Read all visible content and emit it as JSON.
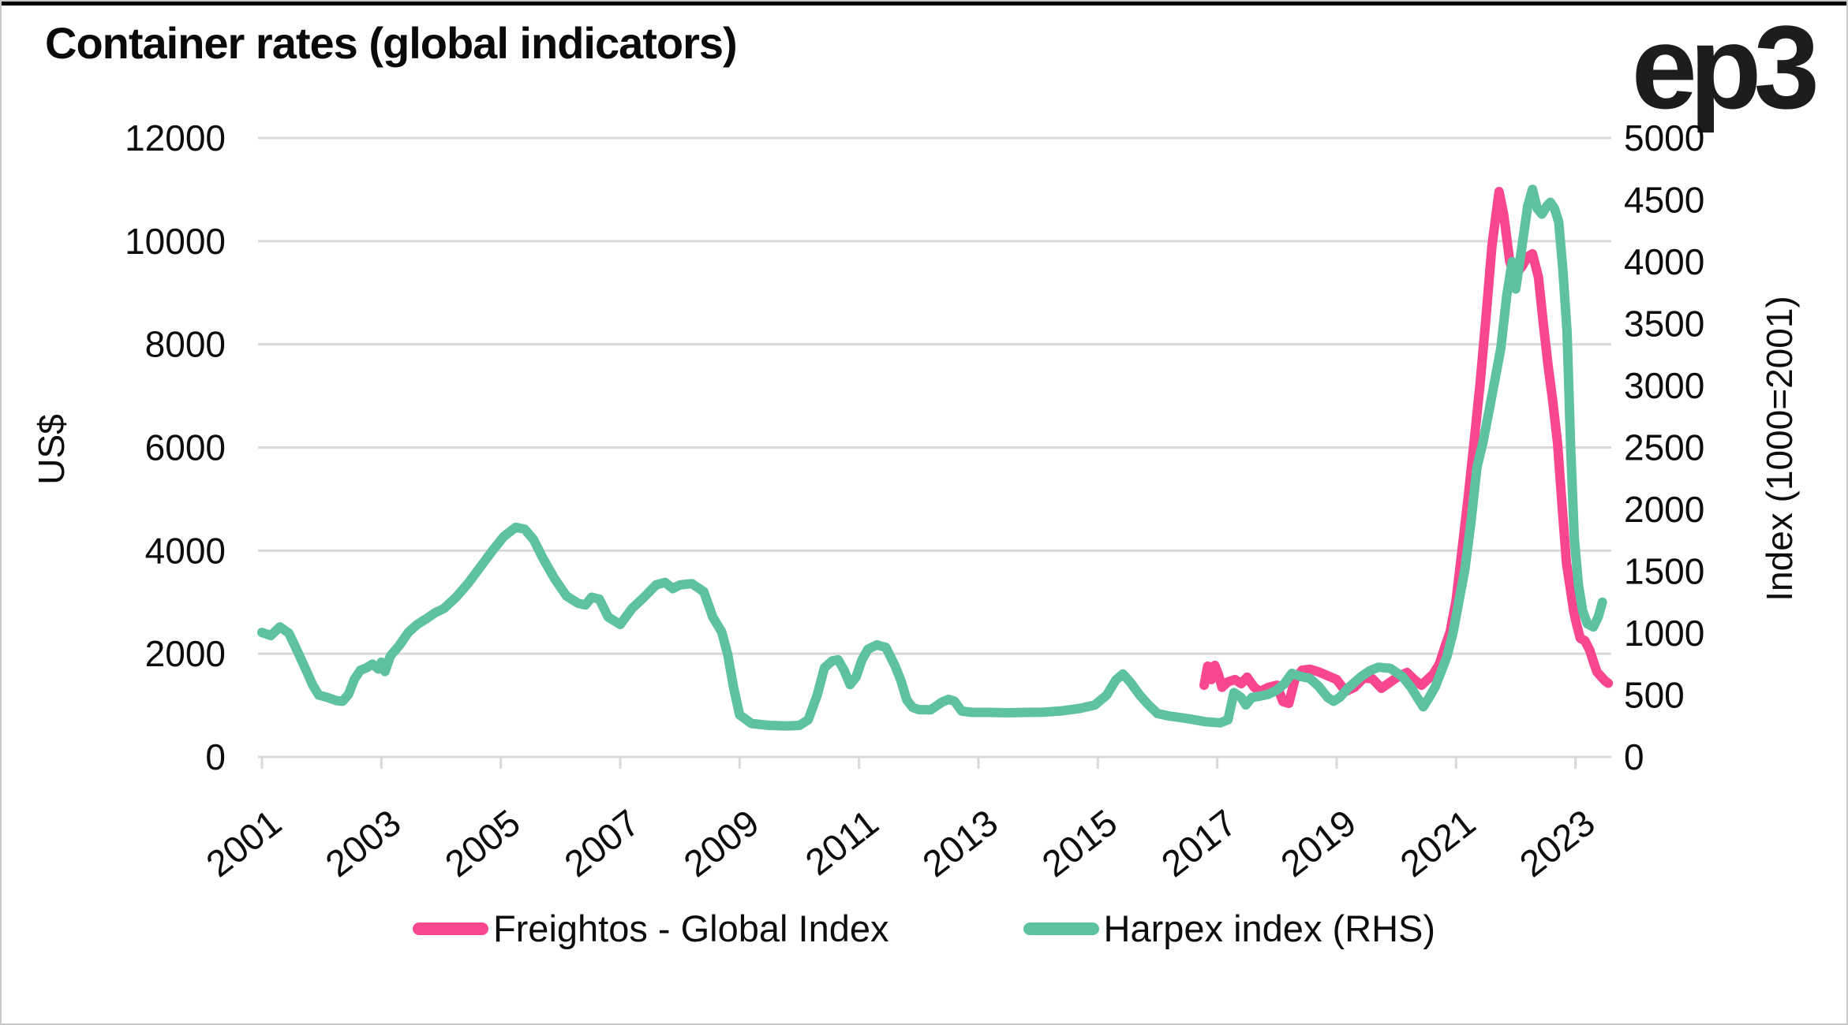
{
  "header": {
    "logo_text": "ep3"
  },
  "chart_data": {
    "type": "line",
    "title": "Container rates (global indicators)",
    "grid": "horizontal-on",
    "legend_position": "bottom-center",
    "x_axis": {
      "range": [
        2001,
        2023.6
      ],
      "tick_years": [
        2001,
        2003,
        2005,
        2007,
        2009,
        2011,
        2013,
        2015,
        2017,
        2019,
        2021,
        2023
      ],
      "tick_labels": [
        "2001",
        "2003",
        "2005",
        "2007",
        "2009",
        "2011",
        "2013",
        "2015",
        "2017",
        "2019",
        "2021",
        "2023"
      ]
    },
    "y_axis_left": {
      "label": "US$",
      "range": [
        0,
        12000
      ],
      "ticks": [
        0,
        2000,
        4000,
        6000,
        8000,
        10000,
        12000
      ]
    },
    "y_axis_right": {
      "label": "Index (1000=2001)",
      "range": [
        0,
        5000
      ],
      "ticks": [
        0,
        500,
        1000,
        1500,
        2000,
        2500,
        3000,
        3500,
        4000,
        4500,
        5000
      ]
    },
    "series": [
      {
        "name": "Freightos - Global Index",
        "color": "#F9478F",
        "axis": "left",
        "points": [
          [
            2016.78,
            1390
          ],
          [
            2016.84,
            1760
          ],
          [
            2016.9,
            1500
          ],
          [
            2016.96,
            1775
          ],
          [
            2017.02,
            1600
          ],
          [
            2017.08,
            1350
          ],
          [
            2017.18,
            1455
          ],
          [
            2017.3,
            1500
          ],
          [
            2017.4,
            1420
          ],
          [
            2017.5,
            1545
          ],
          [
            2017.62,
            1350
          ],
          [
            2017.72,
            1270
          ],
          [
            2017.85,
            1345
          ],
          [
            2018.0,
            1390
          ],
          [
            2018.1,
            1075
          ],
          [
            2018.2,
            1040
          ],
          [
            2018.3,
            1500
          ],
          [
            2018.42,
            1680
          ],
          [
            2018.55,
            1700
          ],
          [
            2018.7,
            1650
          ],
          [
            2018.85,
            1575
          ],
          [
            2019.0,
            1500
          ],
          [
            2019.15,
            1270
          ],
          [
            2019.3,
            1350
          ],
          [
            2019.45,
            1530
          ],
          [
            2019.6,
            1515
          ],
          [
            2019.75,
            1330
          ],
          [
            2019.9,
            1450
          ],
          [
            2020.05,
            1575
          ],
          [
            2020.18,
            1635
          ],
          [
            2020.3,
            1500
          ],
          [
            2020.42,
            1390
          ],
          [
            2020.52,
            1500
          ],
          [
            2020.62,
            1610
          ],
          [
            2020.72,
            1800
          ],
          [
            2020.82,
            2160
          ],
          [
            2020.9,
            2420
          ],
          [
            2021.0,
            3030
          ],
          [
            2021.1,
            4000
          ],
          [
            2021.2,
            5000
          ],
          [
            2021.3,
            6085
          ],
          [
            2021.4,
            7200
          ],
          [
            2021.5,
            8500
          ],
          [
            2021.6,
            9900
          ],
          [
            2021.72,
            10960
          ],
          [
            2021.8,
            10500
          ],
          [
            2021.9,
            9600
          ],
          [
            2021.98,
            9340
          ],
          [
            2022.1,
            9500
          ],
          [
            2022.2,
            9700
          ],
          [
            2022.28,
            9755
          ],
          [
            2022.38,
            9300
          ],
          [
            2022.46,
            8425
          ],
          [
            2022.54,
            7600
          ],
          [
            2022.62,
            6900
          ],
          [
            2022.7,
            6085
          ],
          [
            2022.78,
            4800
          ],
          [
            2022.85,
            3750
          ],
          [
            2022.92,
            3225
          ],
          [
            2022.97,
            2830
          ],
          [
            2023.02,
            2570
          ],
          [
            2023.08,
            2300
          ],
          [
            2023.16,
            2250
          ],
          [
            2023.24,
            2065
          ],
          [
            2023.3,
            1850
          ],
          [
            2023.36,
            1650
          ],
          [
            2023.43,
            1560
          ],
          [
            2023.5,
            1470
          ],
          [
            2023.55,
            1430
          ]
        ]
      },
      {
        "name": "Harpex index (RHS)",
        "color": "#5EC2A0",
        "axis": "right",
        "points": [
          [
            2001.0,
            1005
          ],
          [
            2001.15,
            980
          ],
          [
            2001.3,
            1050
          ],
          [
            2001.45,
            1000
          ],
          [
            2001.55,
            900
          ],
          [
            2001.65,
            795
          ],
          [
            2001.75,
            690
          ],
          [
            2001.85,
            580
          ],
          [
            2001.95,
            500
          ],
          [
            2002.1,
            480
          ],
          [
            2002.25,
            455
          ],
          [
            2002.35,
            450
          ],
          [
            2002.45,
            505
          ],
          [
            2002.55,
            630
          ],
          [
            2002.65,
            700
          ],
          [
            2002.75,
            720
          ],
          [
            2002.85,
            750
          ],
          [
            2002.95,
            710
          ],
          [
            2003.0,
            765
          ],
          [
            2003.06,
            690
          ],
          [
            2003.15,
            815
          ],
          [
            2003.3,
            900
          ],
          [
            2003.45,
            1005
          ],
          [
            2003.6,
            1070
          ],
          [
            2003.75,
            1115
          ],
          [
            2003.9,
            1165
          ],
          [
            2004.05,
            1200
          ],
          [
            2004.25,
            1290
          ],
          [
            2004.45,
            1400
          ],
          [
            2004.65,
            1530
          ],
          [
            2004.85,
            1660
          ],
          [
            2005.05,
            1780
          ],
          [
            2005.25,
            1855
          ],
          [
            2005.4,
            1840
          ],
          [
            2005.55,
            1755
          ],
          [
            2005.7,
            1610
          ],
          [
            2005.9,
            1440
          ],
          [
            2006.1,
            1300
          ],
          [
            2006.3,
            1240
          ],
          [
            2006.42,
            1228
          ],
          [
            2006.52,
            1290
          ],
          [
            2006.65,
            1275
          ],
          [
            2006.8,
            1130
          ],
          [
            2007.0,
            1070
          ],
          [
            2007.2,
            1200
          ],
          [
            2007.4,
            1290
          ],
          [
            2007.6,
            1390
          ],
          [
            2007.75,
            1410
          ],
          [
            2007.88,
            1360
          ],
          [
            2008.0,
            1390
          ],
          [
            2008.2,
            1400
          ],
          [
            2008.4,
            1335
          ],
          [
            2008.55,
            1130
          ],
          [
            2008.7,
            1010
          ],
          [
            2008.8,
            830
          ],
          [
            2008.9,
            560
          ],
          [
            2009.0,
            340
          ],
          [
            2009.2,
            270
          ],
          [
            2009.5,
            255
          ],
          [
            2009.8,
            250
          ],
          [
            2010.0,
            255
          ],
          [
            2010.15,
            300
          ],
          [
            2010.3,
            500
          ],
          [
            2010.42,
            720
          ],
          [
            2010.55,
            775
          ],
          [
            2010.65,
            785
          ],
          [
            2010.75,
            700
          ],
          [
            2010.85,
            585
          ],
          [
            2010.95,
            645
          ],
          [
            2011.05,
            785
          ],
          [
            2011.15,
            870
          ],
          [
            2011.3,
            905
          ],
          [
            2011.45,
            885
          ],
          [
            2011.6,
            740
          ],
          [
            2011.7,
            620
          ],
          [
            2011.8,
            460
          ],
          [
            2011.9,
            400
          ],
          [
            2012.0,
            382
          ],
          [
            2012.2,
            380
          ],
          [
            2012.38,
            440
          ],
          [
            2012.5,
            465
          ],
          [
            2012.6,
            450
          ],
          [
            2012.72,
            370
          ],
          [
            2012.9,
            360
          ],
          [
            2013.2,
            360
          ],
          [
            2013.5,
            357
          ],
          [
            2013.8,
            360
          ],
          [
            2014.1,
            362
          ],
          [
            2014.4,
            372
          ],
          [
            2014.7,
            392
          ],
          [
            2014.95,
            420
          ],
          [
            2015.15,
            500
          ],
          [
            2015.3,
            620
          ],
          [
            2015.42,
            670
          ],
          [
            2015.55,
            600
          ],
          [
            2015.7,
            500
          ],
          [
            2015.85,
            420
          ],
          [
            2016.0,
            350
          ],
          [
            2016.2,
            330
          ],
          [
            2016.5,
            310
          ],
          [
            2016.8,
            285
          ],
          [
            2017.05,
            275
          ],
          [
            2017.18,
            300
          ],
          [
            2017.28,
            520
          ],
          [
            2017.4,
            480
          ],
          [
            2017.48,
            420
          ],
          [
            2017.58,
            480
          ],
          [
            2017.7,
            490
          ],
          [
            2017.85,
            505
          ],
          [
            2018.0,
            540
          ],
          [
            2018.12,
            590
          ],
          [
            2018.25,
            675
          ],
          [
            2018.4,
            650
          ],
          [
            2018.55,
            635
          ],
          [
            2018.7,
            570
          ],
          [
            2018.85,
            480
          ],
          [
            2018.95,
            450
          ],
          [
            2019.05,
            480
          ],
          [
            2019.2,
            560
          ],
          [
            2019.4,
            645
          ],
          [
            2019.55,
            695
          ],
          [
            2019.7,
            725
          ],
          [
            2019.9,
            715
          ],
          [
            2020.1,
            650
          ],
          [
            2020.25,
            560
          ],
          [
            2020.35,
            480
          ],
          [
            2020.45,
            405
          ],
          [
            2020.55,
            480
          ],
          [
            2020.65,
            565
          ],
          [
            2020.75,
            690
          ],
          [
            2020.85,
            815
          ],
          [
            2020.95,
            1005
          ],
          [
            2021.05,
            1265
          ],
          [
            2021.15,
            1520
          ],
          [
            2021.25,
            1900
          ],
          [
            2021.35,
            2340
          ],
          [
            2021.45,
            2540
          ],
          [
            2021.55,
            2790
          ],
          [
            2021.65,
            3045
          ],
          [
            2021.75,
            3300
          ],
          [
            2021.85,
            3730
          ],
          [
            2021.94,
            4000
          ],
          [
            2022.0,
            3780
          ],
          [
            2022.1,
            4110
          ],
          [
            2022.2,
            4450
          ],
          [
            2022.28,
            4585
          ],
          [
            2022.36,
            4430
          ],
          [
            2022.44,
            4385
          ],
          [
            2022.52,
            4450
          ],
          [
            2022.58,
            4480
          ],
          [
            2022.65,
            4430
          ],
          [
            2022.72,
            4320
          ],
          [
            2022.79,
            3930
          ],
          [
            2022.86,
            3430
          ],
          [
            2022.92,
            2500
          ],
          [
            2022.98,
            1770
          ],
          [
            2023.05,
            1390
          ],
          [
            2023.12,
            1180
          ],
          [
            2023.2,
            1075
          ],
          [
            2023.3,
            1050
          ],
          [
            2023.38,
            1130
          ],
          [
            2023.45,
            1250
          ]
        ]
      }
    ],
    "style": {
      "gridline_color": "#d9d9d9",
      "axis_color": "#d9d9d9",
      "text_color": "#0d0d0d",
      "line_width": 12
    }
  }
}
